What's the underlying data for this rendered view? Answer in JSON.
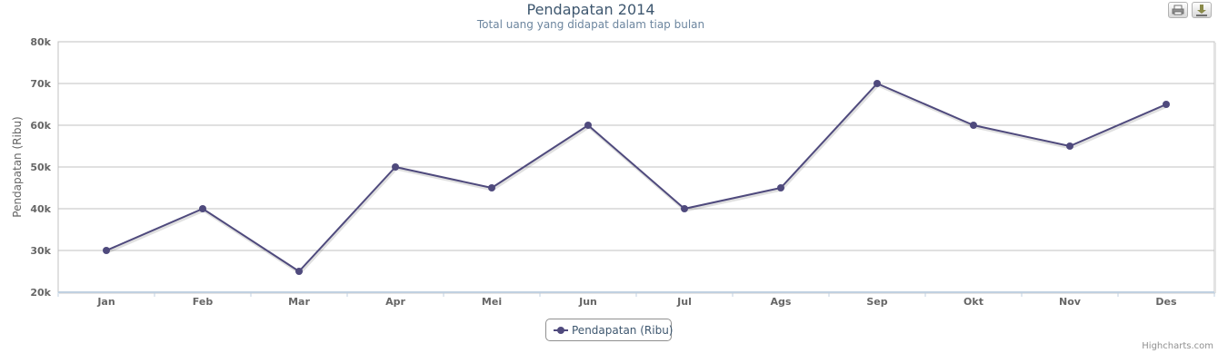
{
  "chart_data": {
    "type": "line",
    "title": "Pendapatan 2014",
    "subtitle": "Total uang yang didapat dalam tiap bulan",
    "xlabel": "",
    "ylabel": "Pendapatan (Ribu)",
    "categories": [
      "Jan",
      "Feb",
      "Mar",
      "Apr",
      "Mei",
      "Jun",
      "Jul",
      "Ags",
      "Sep",
      "Okt",
      "Nov",
      "Des"
    ],
    "series": [
      {
        "name": "Pendapatan (Ribu)",
        "values": [
          30000,
          40000,
          25000,
          50000,
          45000,
          60000,
          40000,
          45000,
          70000,
          60000,
          55000,
          65000
        ]
      }
    ],
    "ylim": [
      20000,
      80000
    ],
    "yticks": [
      {
        "value": 20000,
        "label": "20k"
      },
      {
        "value": 30000,
        "label": "30k"
      },
      {
        "value": 40000,
        "label": "40k"
      },
      {
        "value": 50000,
        "label": "50k"
      },
      {
        "value": 60000,
        "label": "60k"
      },
      {
        "value": 70000,
        "label": "70k"
      },
      {
        "value": 80000,
        "label": "80k"
      }
    ],
    "grid": true,
    "legend_position": "bottom-center"
  },
  "colors": {
    "series": "#4f4a7d",
    "grid": "#c0c0c0",
    "axis_text": "#666666",
    "title": "#3e576f",
    "subtitle": "#6d869f"
  },
  "toolbar": {
    "print_icon": "printer-icon",
    "export_icon": "download-icon"
  },
  "credits": "Highcharts.com"
}
